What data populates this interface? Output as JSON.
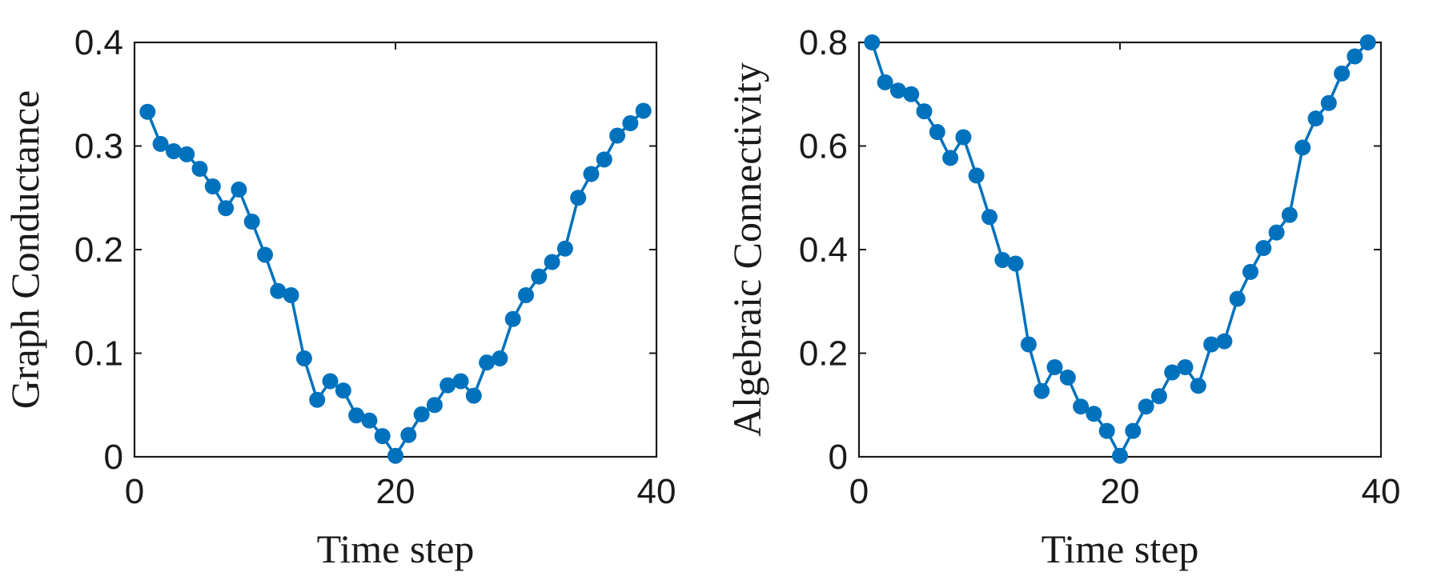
{
  "chart_data": [
    {
      "type": "line",
      "xlabel": "Time step",
      "ylabel": "Graph Conductance",
      "xlim": [
        0,
        40
      ],
      "ylim": [
        0,
        0.4
      ],
      "xticks": [
        0,
        20,
        40
      ],
      "xtick_labels": [
        "0",
        "20",
        "40"
      ],
      "yticks": [
        0,
        0.1,
        0.2,
        0.3,
        0.4
      ],
      "ytick_labels": [
        "0",
        "0.1",
        "0.2",
        "0.3",
        "0.4"
      ],
      "grid": false,
      "series": [
        {
          "color": "#0072bd",
          "x": [
            1,
            2,
            3,
            4,
            5,
            6,
            7,
            8,
            9,
            10,
            11,
            12,
            13,
            14,
            15,
            16,
            17,
            18,
            19,
            20,
            21,
            22,
            23,
            24,
            25,
            26,
            27,
            28,
            29,
            30,
            31,
            32,
            33,
            34,
            35,
            36,
            37,
            38,
            39
          ],
          "y": [
            0.333,
            0.302,
            0.295,
            0.292,
            0.278,
            0.261,
            0.24,
            0.258,
            0.227,
            0.195,
            0.16,
            0.156,
            0.095,
            0.055,
            0.073,
            0.064,
            0.04,
            0.035,
            0.02,
            0.001,
            0.021,
            0.041,
            0.05,
            0.069,
            0.073,
            0.059,
            0.091,
            0.095,
            0.133,
            0.156,
            0.174,
            0.188,
            0.201,
            0.25,
            0.273,
            0.287,
            0.31,
            0.322,
            0.334
          ]
        }
      ]
    },
    {
      "type": "line",
      "xlabel": "Time step",
      "ylabel": "Algebraic Connectivity",
      "xlim": [
        0,
        40
      ],
      "ylim": [
        0,
        0.8
      ],
      "xticks": [
        0,
        20,
        40
      ],
      "xtick_labels": [
        "0",
        "20",
        "40"
      ],
      "yticks": [
        0,
        0.2,
        0.4,
        0.6,
        0.8
      ],
      "ytick_labels": [
        "0",
        "0.2",
        "0.4",
        "0.6",
        "0.8"
      ],
      "grid": false,
      "series": [
        {
          "color": "#0072bd",
          "x": [
            1,
            2,
            3,
            4,
            5,
            6,
            7,
            8,
            9,
            10,
            11,
            12,
            13,
            14,
            15,
            16,
            17,
            18,
            19,
            20,
            21,
            22,
            23,
            24,
            25,
            26,
            27,
            28,
            29,
            30,
            31,
            32,
            33,
            34,
            35,
            36,
            37,
            38,
            39
          ],
          "y": [
            0.8,
            0.723,
            0.707,
            0.7,
            0.667,
            0.627,
            0.577,
            0.617,
            0.543,
            0.463,
            0.38,
            0.373,
            0.217,
            0.127,
            0.173,
            0.153,
            0.097,
            0.083,
            0.05,
            0.002,
            0.05,
            0.097,
            0.117,
            0.163,
            0.173,
            0.137,
            0.217,
            0.223,
            0.305,
            0.357,
            0.403,
            0.433,
            0.467,
            0.597,
            0.653,
            0.683,
            0.74,
            0.773,
            0.8
          ]
        }
      ]
    }
  ]
}
